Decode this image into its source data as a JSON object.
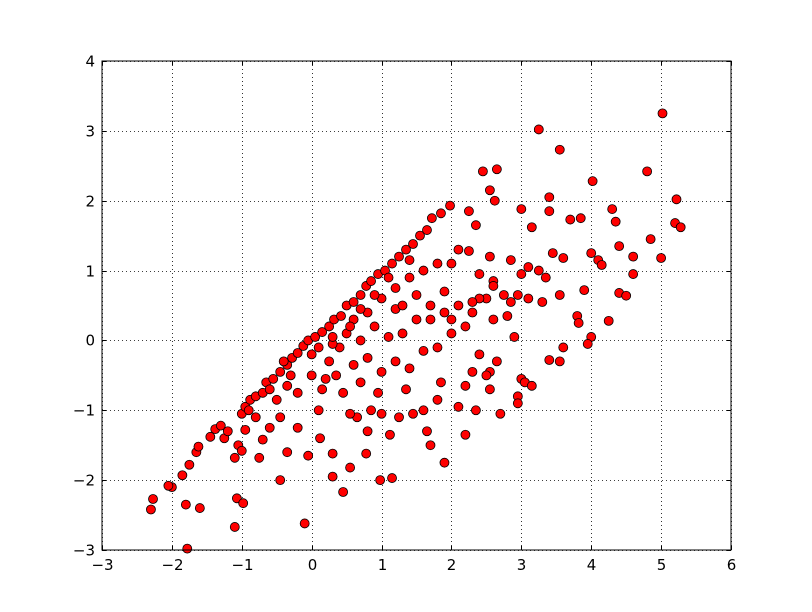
{
  "chart_data": {
    "type": "scatter",
    "title": "",
    "xlabel": "",
    "ylabel": "",
    "xlim": [
      -3,
      6
    ],
    "ylim": [
      -3,
      4
    ],
    "xticks": [
      "−3",
      "−2",
      "−1",
      "0",
      "1",
      "2",
      "3",
      "4",
      "5",
      "6"
    ],
    "yticks": [
      "−3",
      "−2",
      "−1",
      "0",
      "1",
      "2",
      "3",
      "4"
    ],
    "grid": true,
    "grid_style": "dotted",
    "marker_color": "#ff0000",
    "marker_edge_color": "#000000",
    "points": [
      [
        -2.27,
        -2.27
      ],
      [
        -2.3,
        -2.42
      ],
      [
        -2.0,
        -2.1
      ],
      [
        -2.05,
        -2.08
      ],
      [
        -1.85,
        -1.93
      ],
      [
        -1.75,
        -1.78
      ],
      [
        -1.8,
        -2.35
      ],
      [
        -1.6,
        -2.4
      ],
      [
        -1.78,
        -2.98
      ],
      [
        -1.1,
        -2.67
      ],
      [
        -1.07,
        -2.26
      ],
      [
        -0.98,
        -2.33
      ],
      [
        -0.45,
        -2.0
      ],
      [
        -0.1,
        -2.62
      ],
      [
        0.45,
        -2.17
      ],
      [
        0.98,
        -2.0
      ],
      [
        1.15,
        -1.97
      ],
      [
        0.3,
        -1.95
      ],
      [
        0.78,
        -1.62
      ],
      [
        0.3,
        -1.62
      ],
      [
        0.55,
        -1.82
      ],
      [
        -1.65,
        -1.6
      ],
      [
        -1.62,
        -1.52
      ],
      [
        -1.45,
        -1.38
      ],
      [
        -1.38,
        -1.27
      ],
      [
        -1.3,
        -1.22
      ],
      [
        -1.25,
        -1.4
      ],
      [
        -1.1,
        -1.68
      ],
      [
        -1.05,
        -1.5
      ],
      [
        -1.0,
        -1.05
      ],
      [
        -0.95,
        -0.95
      ],
      [
        -0.88,
        -0.85
      ],
      [
        -0.8,
        -0.8
      ],
      [
        -0.7,
        -0.75
      ],
      [
        -0.65,
        -0.6
      ],
      [
        -0.55,
        -0.55
      ],
      [
        -0.45,
        -0.45
      ],
      [
        -0.35,
        -0.35
      ],
      [
        -0.28,
        -0.25
      ],
      [
        -0.2,
        -0.18
      ],
      [
        -0.12,
        -0.08
      ],
      [
        -0.05,
        0.0
      ],
      [
        0.05,
        0.05
      ],
      [
        0.15,
        0.12
      ],
      [
        0.25,
        0.2
      ],
      [
        0.32,
        0.3
      ],
      [
        0.42,
        0.35
      ],
      [
        0.5,
        0.5
      ],
      [
        0.6,
        0.55
      ],
      [
        0.7,
        0.65
      ],
      [
        0.78,
        0.78
      ],
      [
        0.85,
        0.85
      ],
      [
        0.95,
        0.95
      ],
      [
        1.05,
        1.0
      ],
      [
        1.15,
        1.1
      ],
      [
        1.25,
        1.2
      ],
      [
        1.35,
        1.3
      ],
      [
        1.45,
        1.38
      ],
      [
        1.55,
        1.5
      ],
      [
        1.65,
        1.58
      ],
      [
        1.72,
        1.75
      ],
      [
        1.85,
        1.82
      ],
      [
        1.98,
        1.93
      ],
      [
        2.0,
        1.1
      ],
      [
        2.1,
        1.3
      ],
      [
        2.25,
        1.28
      ],
      [
        2.25,
        1.85
      ],
      [
        2.35,
        1.65
      ],
      [
        2.45,
        2.42
      ],
      [
        2.55,
        2.15
      ],
      [
        2.62,
        2.0
      ],
      [
        2.65,
        2.45
      ],
      [
        3.25,
        3.02
      ],
      [
        3.55,
        2.73
      ],
      [
        4.02,
        2.28
      ],
      [
        5.02,
        3.25
      ],
      [
        4.8,
        2.42
      ],
      [
        5.22,
        2.02
      ],
      [
        3.4,
        2.05
      ],
      [
        3.4,
        1.85
      ],
      [
        3.15,
        1.62
      ],
      [
        3.0,
        1.88
      ],
      [
        3.7,
        1.73
      ],
      [
        3.85,
        1.75
      ],
      [
        4.3,
        1.88
      ],
      [
        4.35,
        1.7
      ],
      [
        5.2,
        1.68
      ],
      [
        5.28,
        1.62
      ],
      [
        4.85,
        1.45
      ],
      [
        4.4,
        1.35
      ],
      [
        4.0,
        1.25
      ],
      [
        4.1,
        1.15
      ],
      [
        4.15,
        1.08
      ],
      [
        4.6,
        1.2
      ],
      [
        4.6,
        0.95
      ],
      [
        5.0,
        1.18
      ],
      [
        3.9,
        0.72
      ],
      [
        4.25,
        0.28
      ],
      [
        4.4,
        0.68
      ],
      [
        4.5,
        0.64
      ],
      [
        3.55,
        0.65
      ],
      [
        3.8,
        0.35
      ],
      [
        3.82,
        0.25
      ],
      [
        4.0,
        0.05
      ],
      [
        3.95,
        -0.05
      ],
      [
        3.6,
        -0.1
      ],
      [
        3.55,
        -0.3
      ],
      [
        3.4,
        -0.28
      ],
      [
        3.3,
        0.55
      ],
      [
        3.1,
        0.6
      ],
      [
        2.95,
        0.65
      ],
      [
        2.85,
        0.55
      ],
      [
        2.75,
        0.65
      ],
      [
        2.5,
        0.6
      ],
      [
        2.4,
        0.6
      ],
      [
        2.6,
        0.85
      ],
      [
        2.6,
        0.78
      ],
      [
        2.4,
        0.95
      ],
      [
        2.55,
        1.2
      ],
      [
        2.85,
        1.15
      ],
      [
        3.0,
        0.95
      ],
      [
        3.1,
        1.05
      ],
      [
        3.25,
        1.0
      ],
      [
        3.35,
        0.9
      ],
      [
        3.45,
        1.25
      ],
      [
        3.6,
        1.18
      ],
      [
        2.9,
        0.05
      ],
      [
        3.0,
        -0.55
      ],
      [
        3.05,
        -0.6
      ],
      [
        3.15,
        -0.65
      ],
      [
        2.95,
        -0.8
      ],
      [
        2.95,
        -0.9
      ],
      [
        2.7,
        -1.05
      ],
      [
        2.55,
        -0.7
      ],
      [
        2.55,
        -0.45
      ],
      [
        2.65,
        -0.3
      ],
      [
        2.35,
        -1.0
      ],
      [
        2.2,
        -1.35
      ],
      [
        2.2,
        -0.65
      ],
      [
        2.1,
        -0.95
      ],
      [
        1.9,
        -1.75
      ],
      [
        1.7,
        -1.5
      ],
      [
        1.65,
        -1.3
      ],
      [
        1.85,
        -0.6
      ],
      [
        1.8,
        -0.85
      ],
      [
        1.6,
        -1.0
      ],
      [
        1.45,
        -1.05
      ],
      [
        1.25,
        -1.1
      ],
      [
        1.12,
        -1.35
      ],
      [
        1.0,
        -1.05
      ],
      [
        0.8,
        -1.3
      ],
      [
        0.85,
        -1.0
      ],
      [
        0.65,
        -1.1
      ],
      [
        0.55,
        -1.05
      ],
      [
        0.45,
        -0.75
      ],
      [
        0.35,
        -0.5
      ],
      [
        0.2,
        -0.55
      ],
      [
        0.15,
        -0.7
      ],
      [
        0.1,
        -1.0
      ],
      [
        0.12,
        -1.4
      ],
      [
        -0.05,
        -1.65
      ],
      [
        -0.2,
        -1.25
      ],
      [
        -0.35,
        -1.6
      ],
      [
        -0.45,
        -1.1
      ],
      [
        -0.6,
        -1.25
      ],
      [
        -0.7,
        -1.42
      ],
      [
        -0.75,
        -1.68
      ],
      [
        -0.8,
        -1.1
      ],
      [
        -0.95,
        -1.28
      ],
      [
        -1.0,
        -1.58
      ],
      [
        -0.5,
        -0.85
      ],
      [
        -0.35,
        -0.65
      ],
      [
        -0.2,
        -0.75
      ],
      [
        0.0,
        -0.5
      ],
      [
        0.25,
        -0.3
      ],
      [
        0.4,
        -0.1
      ],
      [
        0.6,
        -0.35
      ],
      [
        0.8,
        -0.25
      ],
      [
        1.0,
        -0.45
      ],
      [
        1.2,
        -0.3
      ],
      [
        1.4,
        -0.4
      ],
      [
        1.6,
        -0.15
      ],
      [
        1.8,
        -0.1
      ],
      [
        2.0,
        0.1
      ],
      [
        2.2,
        0.2
      ],
      [
        2.3,
        0.4
      ],
      [
        2.4,
        -0.2
      ],
      [
        2.5,
        -0.5
      ],
      [
        1.9,
        0.4
      ],
      [
        1.7,
        0.5
      ],
      [
        1.5,
        0.3
      ],
      [
        1.3,
        0.1
      ],
      [
        1.1,
        0.05
      ],
      [
        0.9,
        0.2
      ],
      [
        0.7,
        0.0
      ],
      [
        0.5,
        0.1
      ],
      [
        0.3,
        -0.05
      ],
      [
        1.0,
        0.6
      ],
      [
        1.2,
        0.75
      ],
      [
        1.4,
        0.9
      ],
      [
        1.6,
        1.0
      ],
      [
        1.8,
        1.1
      ],
      [
        1.2,
        0.45
      ],
      [
        0.8,
        0.4
      ],
      [
        0.6,
        0.3
      ],
      [
        1.5,
        0.65
      ],
      [
        1.9,
        0.7
      ],
      [
        2.1,
        0.5
      ],
      [
        1.4,
        1.15
      ],
      [
        1.1,
        0.9
      ],
      [
        0.9,
        0.65
      ],
      [
        0.7,
        0.45
      ],
      [
        0.3,
        0.05
      ],
      [
        0.0,
        -0.2
      ],
      [
        -0.3,
        -0.5
      ],
      [
        -0.6,
        -0.7
      ],
      [
        -0.9,
        -1.0
      ],
      [
        -1.2,
        -1.3
      ],
      [
        -0.4,
        -0.3
      ],
      [
        0.1,
        -0.1
      ],
      [
        0.55,
        0.2
      ],
      [
        1.3,
        0.5
      ],
      [
        1.7,
        0.3
      ],
      [
        2.0,
        0.3
      ],
      [
        2.3,
        0.55
      ],
      [
        2.6,
        0.3
      ],
      [
        2.8,
        0.35
      ],
      [
        2.3,
        -0.45
      ],
      [
        1.35,
        -0.7
      ],
      [
        0.95,
        -0.75
      ],
      [
        0.7,
        -0.6
      ]
    ]
  }
}
